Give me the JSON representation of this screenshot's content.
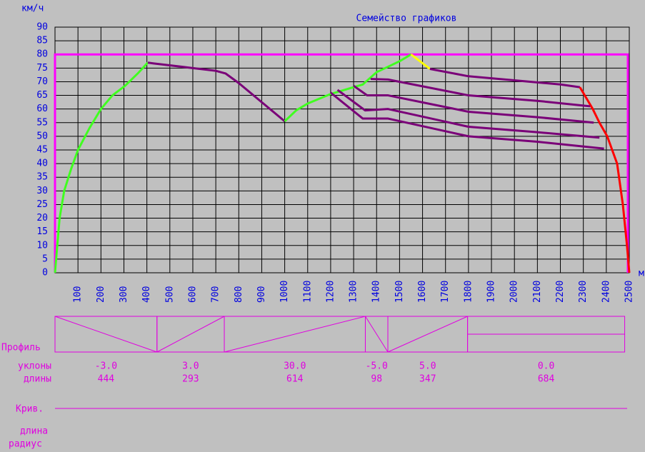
{
  "chart_data": {
    "type": "line",
    "title": "Семейство графиков",
    "y_label": "км/ч",
    "x_label": "м",
    "xlim": [
      0,
      2500
    ],
    "ylim": [
      0,
      90
    ],
    "xticks": [
      100,
      200,
      300,
      400,
      500,
      600,
      700,
      800,
      900,
      1000,
      1100,
      1200,
      1300,
      1400,
      1500,
      1600,
      1700,
      1800,
      1900,
      2000,
      2100,
      2200,
      2300,
      2400,
      2500
    ],
    "yticks": [
      0,
      5,
      10,
      15,
      20,
      25,
      30,
      35,
      40,
      45,
      50,
      55,
      60,
      65,
      70,
      75,
      80,
      85,
      90
    ],
    "grid": true,
    "speed_limit": 80,
    "speed_limit_color": "#ff00ff",
    "series": [
      {
        "color": "#40ff20",
        "x": [
          0,
          20,
          40,
          70,
          100,
          150,
          200,
          250,
          305,
          360,
          404
        ],
        "y": [
          0,
          20,
          30,
          38,
          45,
          53,
          60,
          65,
          68.5,
          73,
          77
        ]
      },
      {
        "color": "#7a0078",
        "x": [
          404,
          430,
          500,
          600,
          700,
          743,
          800,
          900,
          1000
        ],
        "y": [
          77,
          76.7,
          76,
          75,
          74,
          73,
          69.5,
          62.5,
          55.5
        ]
      },
      {
        "color": "#40ff20",
        "x": [
          1000,
          1050,
          1100,
          1200,
          1300,
          1340,
          1400,
          1450,
          1500,
          1550
        ],
        "y": [
          55.5,
          59.5,
          62,
          65.5,
          68,
          69,
          73.5,
          75.5,
          77.5,
          80
        ]
      },
      {
        "color": "#ffff00",
        "x": [
          1550,
          1632
        ],
        "y": [
          80,
          74.7
        ]
      },
      {
        "color": "#7a0078",
        "x": [
          1632,
          1800,
          2000,
          2200,
          2285
        ],
        "y": [
          74.7,
          72,
          70.5,
          69,
          68
        ]
      },
      {
        "color": "#ff0000",
        "x": [
          2285,
          2341,
          2370,
          2404,
          2447,
          2472,
          2490,
          2500
        ],
        "y": [
          68,
          60,
          55,
          50,
          40,
          25,
          10,
          0
        ]
      },
      {
        "color": "#7a0078",
        "x": [
          1374,
          1450,
          1800,
          2100,
          2330
        ],
        "y": [
          71,
          70.8,
          65,
          63,
          61
        ]
      },
      {
        "color": "#7a0078",
        "x": [
          1300,
          1359,
          1450,
          1800,
          2100,
          2345
        ],
        "y": [
          68.5,
          65,
          65,
          59,
          57,
          55
        ]
      },
      {
        "color": "#7a0078",
        "x": [
          1230,
          1350,
          1450,
          1800,
          2100,
          2370
        ],
        "y": [
          67,
          59.5,
          60,
          53.5,
          51.5,
          49.5
        ]
      },
      {
        "color": "#7a0078",
        "x": [
          1200,
          1340,
          1450,
          1800,
          2100,
          2390
        ],
        "y": [
          66,
          56.5,
          56.5,
          50,
          48,
          45.5
        ]
      }
    ]
  },
  "profile": {
    "label": "Профиль",
    "slopes_label": "уклоны",
    "lengths_label": "длины",
    "curve_label": "Крив.",
    "curve_length_label": "длина",
    "curve_radius_label": "радиус",
    "segments": [
      {
        "slope": "-3.0",
        "length": 444
      },
      {
        "slope": "3.0",
        "length": 293
      },
      {
        "slope": "30.0",
        "length": 614
      },
      {
        "slope": "-5.0",
        "length": 98
      },
      {
        "slope": "5.0",
        "length": 347
      },
      {
        "slope": "0.0",
        "length": 684
      }
    ]
  }
}
